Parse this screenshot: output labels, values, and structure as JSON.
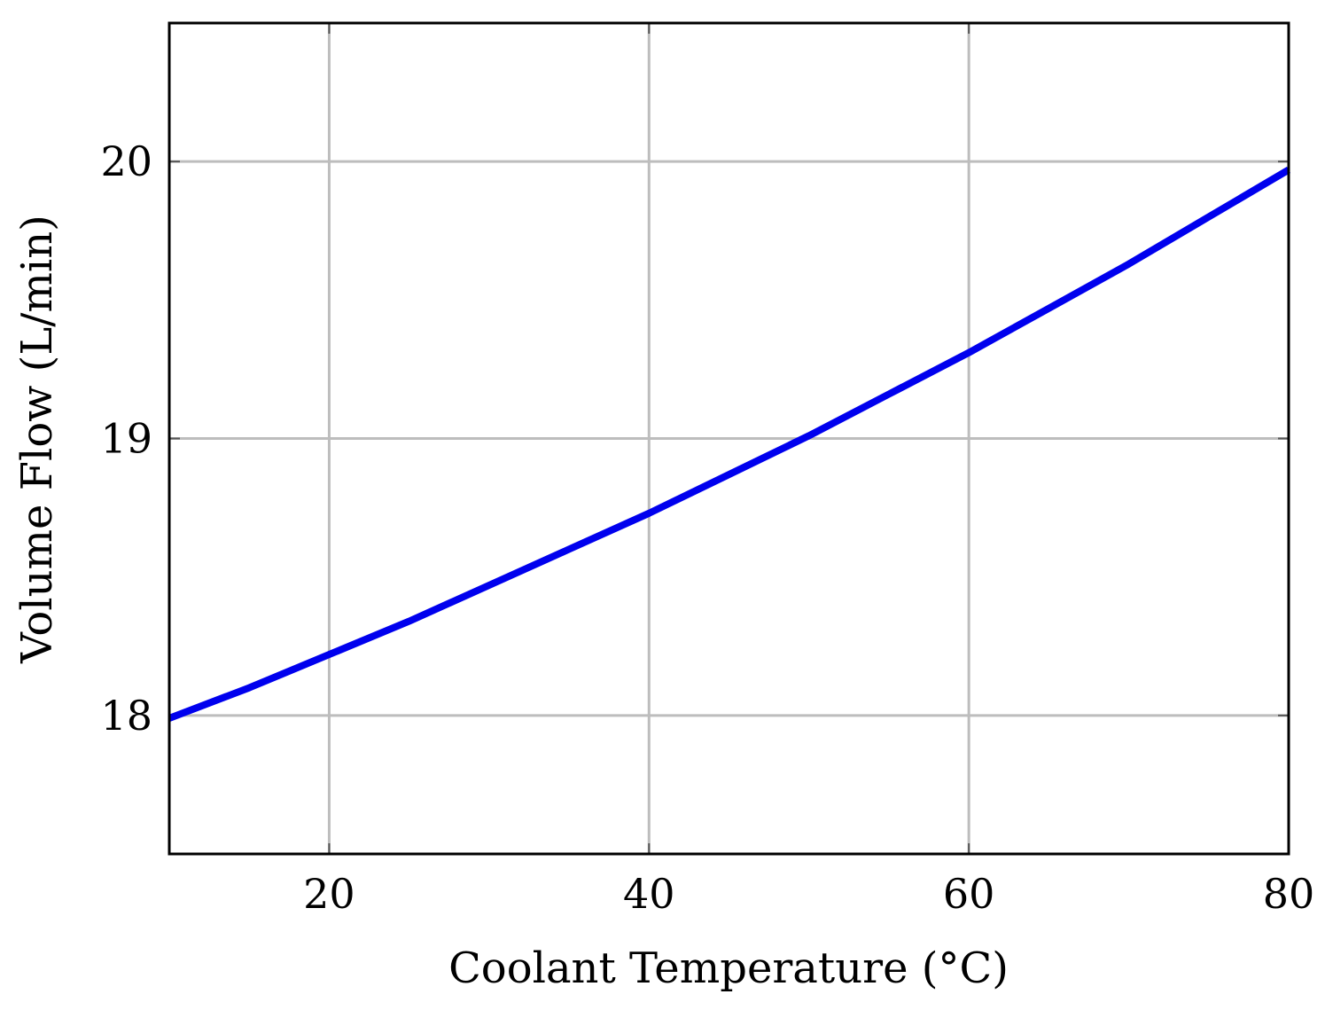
{
  "chart_data": {
    "type": "line",
    "title": "",
    "xlabel": "Coolant Temperature (°C)",
    "ylabel": "Volume Flow (L/min)",
    "xlim": [
      10,
      80
    ],
    "ylim": [
      17.5,
      20.5
    ],
    "xticks": [
      20,
      40,
      60,
      80
    ],
    "yticks": [
      18,
      19,
      20
    ],
    "grid": true,
    "legend": "none",
    "series": [
      {
        "color": "#0000ee",
        "x": [
          10,
          15,
          20,
          25,
          30,
          35,
          40,
          45,
          50,
          55,
          60,
          65,
          70,
          75,
          80
        ],
        "y": [
          17.99,
          18.1,
          18.22,
          18.34,
          18.47,
          18.6,
          18.73,
          18.87,
          19.01,
          19.16,
          19.31,
          19.47,
          19.63,
          19.8,
          19.97
        ]
      }
    ]
  }
}
